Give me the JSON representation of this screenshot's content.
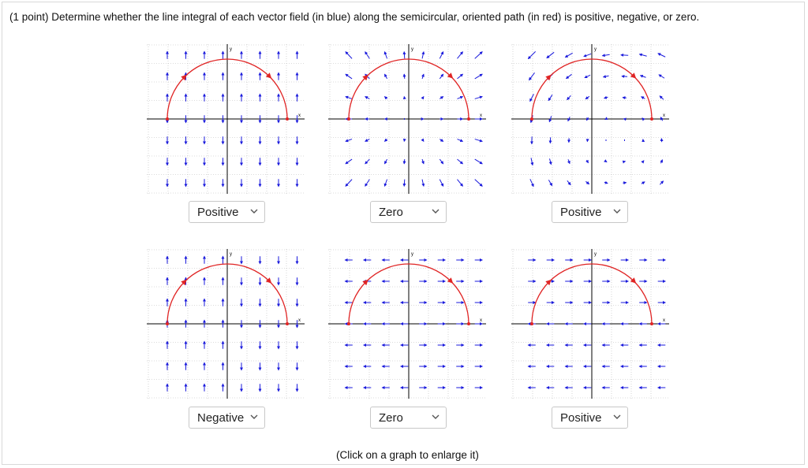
{
  "question": "(1 point) Determine whether the line integral of each vector field (in blue) along the semicircular, oriented path (in red) is positive, negative, or zero.",
  "footer": "(Click on a graph to enlarge it)",
  "colors": {
    "field": "#1a1adc",
    "path": "#e02424",
    "axis": "#000000",
    "grid": "#b8b8b8"
  },
  "axis_labels": {
    "x": "x",
    "y": "y"
  },
  "graphs": [
    {
      "field": "vertical-up-top-down-bottom",
      "answer": "Positive"
    },
    {
      "field": "radial-outward",
      "answer": "Zero"
    },
    {
      "field": "rotational-counterclockwise",
      "answer": "Positive"
    },
    {
      "field": "vertical-up-left-down-right",
      "answer": "Negative"
    },
    {
      "field": "horizontal-outward",
      "answer": "Zero"
    },
    {
      "field": "horizontal-right-top-left-bottom",
      "answer": "Positive"
    }
  ]
}
